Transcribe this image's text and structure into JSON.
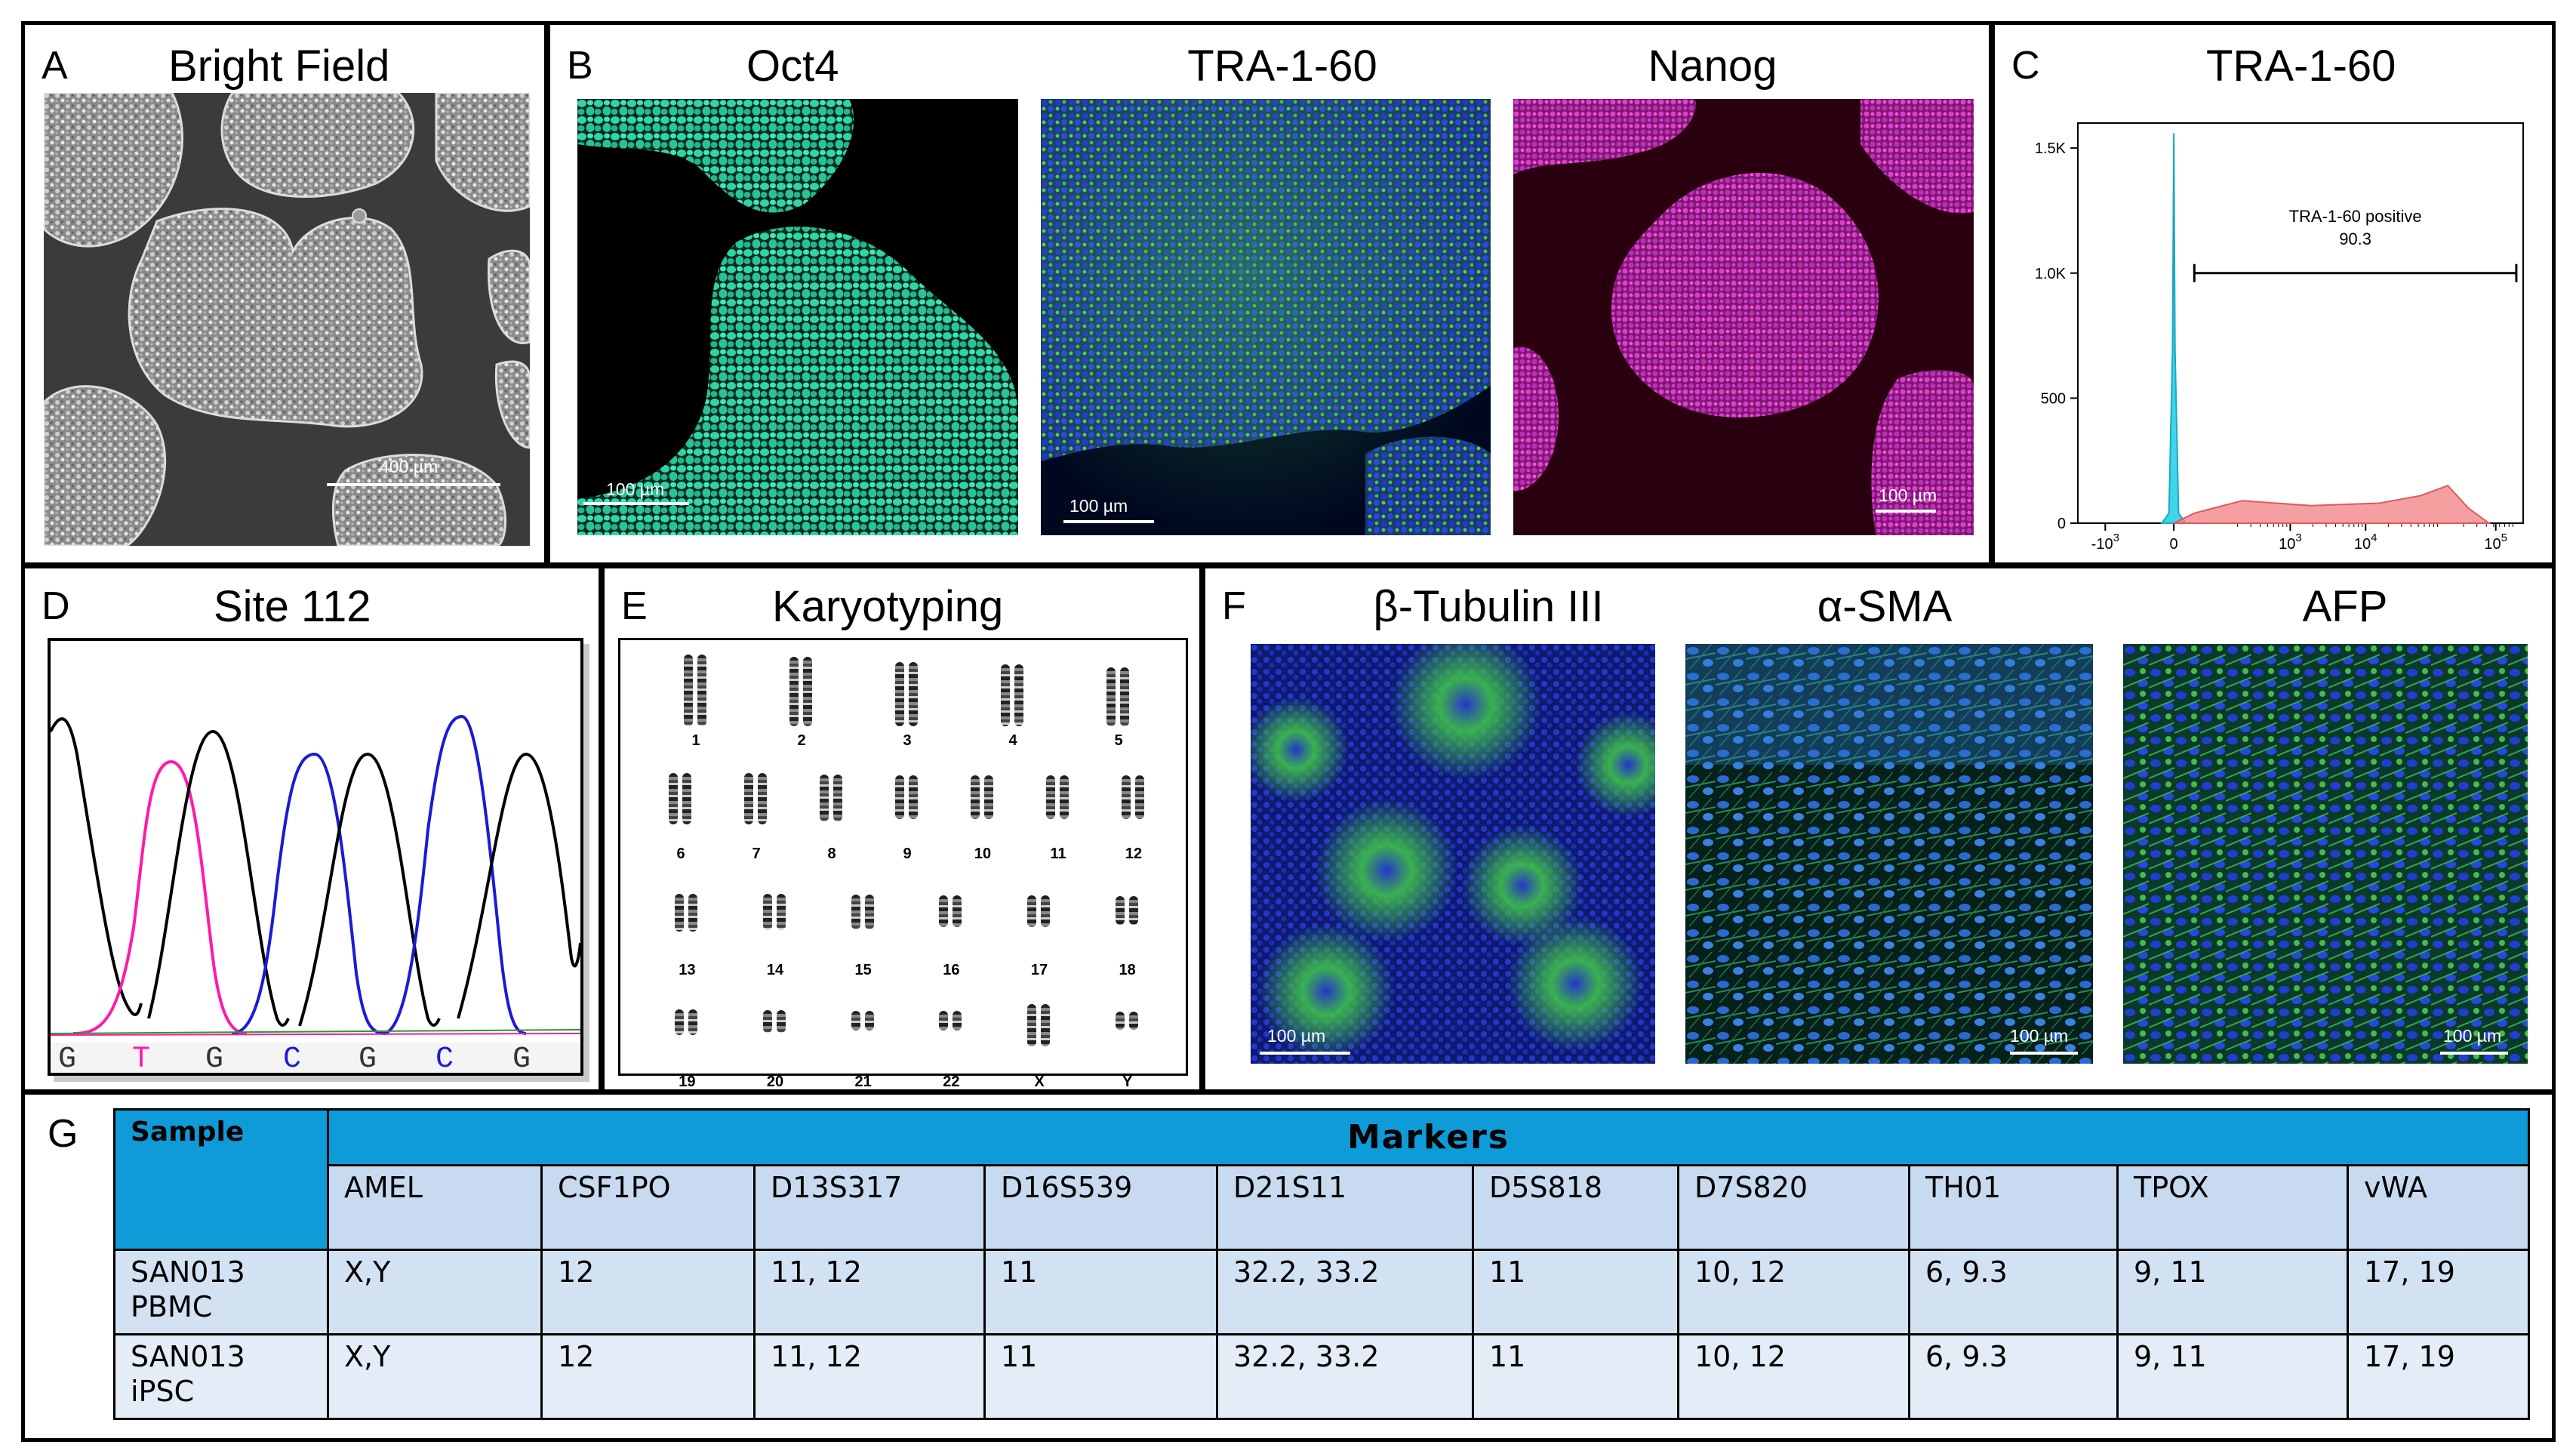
{
  "panels": {
    "A": {
      "letter": "A",
      "title": "Bright Field",
      "scale_label": "400 µm"
    },
    "B": {
      "letter": "B",
      "titles": [
        "Oct4",
        "TRA-1-60",
        "Nanog"
      ],
      "scale_labels": [
        "100 µm",
        "100 µm",
        "100 µm"
      ]
    },
    "C": {
      "letter": "C",
      "title": "TRA-1-60"
    },
    "D": {
      "letter": "D",
      "title": "Site 112",
      "bases": [
        "G",
        "T",
        "G",
        "C",
        "G",
        "C",
        "G"
      ]
    },
    "E": {
      "letter": "E",
      "title": "Karyotyping",
      "chromosome_labels": [
        "1",
        "2",
        "3",
        "4",
        "5",
        "6",
        "7",
        "8",
        "9",
        "10",
        "11",
        "12",
        "13",
        "14",
        "15",
        "16",
        "17",
        "18",
        "19",
        "20",
        "21",
        "22",
        "X",
        "Y"
      ]
    },
    "F": {
      "letter": "F",
      "titles": [
        "β-Tubulin III",
        "α-SMA",
        "AFP"
      ],
      "scale_labels": [
        "100 µm",
        "100 µm",
        "100 µm"
      ]
    },
    "G": {
      "letter": "G"
    }
  },
  "colors": {
    "oct4": "#2fd6a3",
    "tra_green": "#3fbf4a",
    "nuclei_blue": "#2436c8",
    "nanog": "#e23ad6",
    "histogram_blue": "#2ad0e8",
    "histogram_red": "#f08080",
    "trace_black": "#000000",
    "trace_pink": "#ff1aa8",
    "trace_blue": "#1a1ad8",
    "table_header": "#0e9bd7",
    "table_row": "#d3e2f3"
  },
  "chart_data": {
    "type": "area",
    "title": "TRA-1-60",
    "y_ticks": [
      "1.5K",
      "1.0K",
      "500",
      "0"
    ],
    "x_ticks": [
      "-10^3",
      "0",
      "10^3",
      "10^4",
      "10^5"
    ],
    "ylim": [
      0,
      1600
    ],
    "series": [
      {
        "name": "",
        "color": "#2ad0e8",
        "x": [
          -0.5,
          -0.2,
          -0.05,
          0.0,
          0.05,
          0.2,
          0.5
        ],
        "y": [
          0,
          40,
          700,
          1560,
          700,
          40,
          0
        ]
      },
      {
        "name": "",
        "color": "#f08080",
        "x": [
          0.0,
          0.3,
          1.0,
          2.0,
          3.0,
          3.6,
          4.0,
          4.3,
          4.6
        ],
        "y": [
          0,
          40,
          90,
          70,
          80,
          110,
          150,
          60,
          0
        ]
      }
    ],
    "gate": {
      "label": "TRA-1-60 positive",
      "value": "90.3",
      "x_range": [
        0.3,
        5.0
      ],
      "y": 1000
    }
  },
  "table": {
    "sample_header": "Sample",
    "markers_header": "Markers",
    "columns": [
      "AMEL",
      "CSF1PO",
      "D13S317",
      "D16S539",
      "D21S11",
      "D5S818",
      "D7S820",
      "TH01",
      "TPOX",
      "vWA"
    ],
    "rows": [
      {
        "sample": [
          "SAN013",
          "PBMC"
        ],
        "values": [
          "X,Y",
          "12",
          "11, 12",
          "11",
          "32.2, 33.2",
          "11",
          "10, 12",
          "6, 9.3",
          "9, 11",
          "17, 19"
        ]
      },
      {
        "sample": [
          "SAN013",
          "iPSC"
        ],
        "values": [
          "X,Y",
          "12",
          "11, 12",
          "11",
          "32.2, 33.2",
          "11",
          "10, 12",
          "6, 9.3",
          "9, 11",
          "17, 19"
        ]
      }
    ]
  }
}
